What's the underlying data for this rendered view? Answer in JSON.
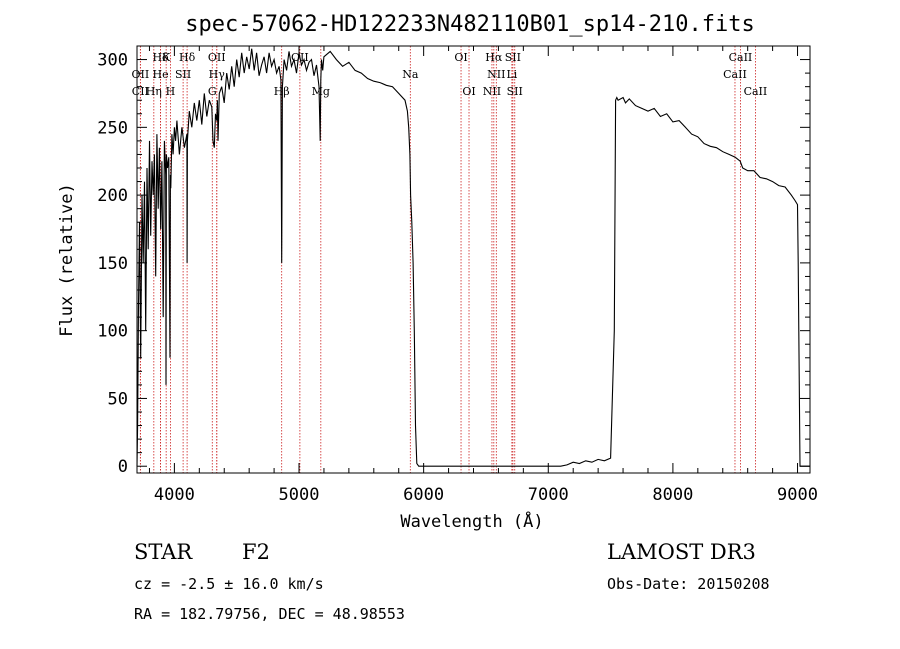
{
  "chart_data": {
    "type": "line",
    "title": "spec-57062-HD122233N482110B01_sp14-210.fits",
    "xlabel": "Wavelength (Å)",
    "ylabel": "Flux (relative)",
    "xlim": [
      3700,
      9100
    ],
    "ylim": [
      -5,
      310
    ],
    "xticks": [
      4000,
      5000,
      6000,
      7000,
      8000,
      9000
    ],
    "yticks": [
      0,
      50,
      100,
      150,
      200,
      250,
      300
    ],
    "series": [
      {
        "name": "flux",
        "x": [
          3700,
          3705,
          3712,
          3720,
          3730,
          3740,
          3750,
          3760,
          3770,
          3780,
          3790,
          3800,
          3810,
          3820,
          3830,
          3840,
          3850,
          3860,
          3870,
          3880,
          3890,
          3900,
          3910,
          3920,
          3930,
          3933,
          3936,
          3945,
          3955,
          3965,
          3968,
          3971,
          3980,
          3990,
          4000,
          4010,
          4020,
          4040,
          4060,
          4080,
          4100,
          4102,
          4104,
          4120,
          4140,
          4160,
          4180,
          4200,
          4220,
          4240,
          4260,
          4280,
          4300,
          4310,
          4320,
          4330,
          4340,
          4345,
          4350,
          4360,
          4380,
          4400,
          4420,
          4440,
          4460,
          4480,
          4500,
          4520,
          4540,
          4560,
          4580,
          4600,
          4620,
          4640,
          4660,
          4680,
          4700,
          4720,
          4740,
          4760,
          4780,
          4800,
          4820,
          4840,
          4855,
          4861,
          4867,
          4880,
          4900,
          4920,
          4940,
          4960,
          4980,
          5000,
          5020,
          5040,
          5060,
          5080,
          5100,
          5120,
          5140,
          5160,
          5170,
          5175,
          5180,
          5190,
          5200,
          5250,
          5300,
          5350,
          5400,
          5450,
          5500,
          5550,
          5600,
          5650,
          5700,
          5750,
          5800,
          5850,
          5870,
          5880,
          5890,
          5895,
          5905,
          5915,
          5925,
          5935,
          5945,
          5960,
          6000,
          6200,
          6400,
          6600,
          6800,
          7000,
          7100,
          7150,
          7200,
          7250,
          7300,
          7350,
          7400,
          7450,
          7500,
          7530,
          7540,
          7550,
          7560,
          7600,
          7620,
          7650,
          7700,
          7750,
          7800,
          7850,
          7900,
          7950,
          8000,
          8050,
          8100,
          8150,
          8200,
          8250,
          8300,
          8350,
          8400,
          8450,
          8500,
          8540,
          8560,
          8600,
          8650,
          8700,
          8750,
          8800,
          8850,
          8900,
          8950,
          8980,
          9000,
          9005,
          9010,
          9020,
          9100
        ],
        "values": [
          0,
          30,
          120,
          180,
          80,
          200,
          150,
          210,
          100,
          220,
          160,
          240,
          170,
          225,
          200,
          230,
          140,
          245,
          190,
          235,
          175,
          225,
          110,
          240,
          215,
          60,
          230,
          220,
          228,
          80,
          215,
          205,
          245,
          230,
          250,
          240,
          255,
          230,
          250,
          235,
          245,
          150,
          240,
          262,
          250,
          268,
          255,
          270,
          252,
          275,
          258,
          270,
          265,
          240,
          235,
          260,
          255,
          270,
          240,
          275,
          280,
          268,
          290,
          278,
          295,
          280,
          300,
          287,
          305,
          290,
          302,
          293,
          308,
          292,
          305,
          288,
          296,
          302,
          290,
          305,
          295,
          300,
          290,
          295,
          285,
          150,
          280,
          300,
          292,
          306,
          295,
          300,
          290,
          305,
          296,
          300,
          292,
          298,
          300,
          288,
          296,
          280,
          240,
          285,
          300,
          292,
          302,
          306,
          300,
          295,
          298,
          292,
          290,
          286,
          284,
          283,
          281,
          280,
          275,
          270,
          262,
          250,
          230,
          200,
          180,
          150,
          100,
          30,
          2,
          0,
          0,
          0,
          0,
          0,
          0,
          0,
          0,
          1,
          3,
          2,
          4,
          3,
          5,
          4,
          6,
          100,
          270,
          272,
          270,
          272,
          268,
          271,
          266,
          264,
          262,
          264,
          258,
          260,
          254,
          255,
          250,
          245,
          243,
          238,
          236,
          235,
          232,
          230,
          228,
          225,
          220,
          218,
          218,
          213,
          212,
          210,
          207,
          206,
          200,
          196,
          193,
          150,
          100,
          0,
          0
        ]
      }
    ],
    "lines": [
      {
        "label": "Hδ",
        "x": 3889,
        "row": 0
      },
      {
        "label": "K",
        "x": 3934,
        "row": 0
      },
      {
        "label": "Hδ",
        "x": 4102,
        "row": 0
      },
      {
        "label": "OII",
        "x": 4340,
        "row": 0
      },
      {
        "label": "OII",
        "x": 5007,
        "row": 0
      },
      {
        "label": "OI",
        "x": 6300,
        "row": 0
      },
      {
        "label": "Hα",
        "x": 6563,
        "row": 0
      },
      {
        "label": "SII",
        "x": 6716,
        "row": 0
      },
      {
        "label": "CaII",
        "x": 8542,
        "row": 0
      },
      {
        "label": "OII",
        "x": 3727,
        "row": 1
      },
      {
        "label": "He",
        "x": 3889,
        "row": 1
      },
      {
        "label": "SII",
        "x": 4070,
        "row": 1
      },
      {
        "label": "Hγ",
        "x": 4340,
        "row": 1
      },
      {
        "label": "Na",
        "x": 5893,
        "row": 1
      },
      {
        "label": "NII",
        "x": 6583,
        "row": 1
      },
      {
        "label": "Li",
        "x": 6708,
        "row": 1
      },
      {
        "label": "CaII",
        "x": 8498,
        "row": 1
      },
      {
        "label": "CII",
        "x": 3727,
        "row": 2
      },
      {
        "label": "Hη",
        "x": 3835,
        "row": 2
      },
      {
        "label": "H",
        "x": 3968,
        "row": 2
      },
      {
        "label": "G",
        "x": 4304,
        "row": 2
      },
      {
        "label": "Hβ",
        "x": 4861,
        "row": 2
      },
      {
        "label": "Mg",
        "x": 5175,
        "row": 2
      },
      {
        "label": "OI",
        "x": 6364,
        "row": 2
      },
      {
        "label": "NII",
        "x": 6548,
        "row": 2
      },
      {
        "label": "SII",
        "x": 6731,
        "row": 2
      },
      {
        "label": "CaII",
        "x": 8662,
        "row": 2
      }
    ]
  },
  "info": {
    "object_type": "STAR",
    "subclass": "F2",
    "survey": "LAMOST DR3",
    "cz": "cz = -2.5 ± 16.0 km/s",
    "obs_date": "Obs-Date: 20150208",
    "coords": "RA = 182.79756, DEC =  48.98553"
  },
  "colors": {
    "line_marker": "#cc2222",
    "spectrum": "#000000"
  }
}
